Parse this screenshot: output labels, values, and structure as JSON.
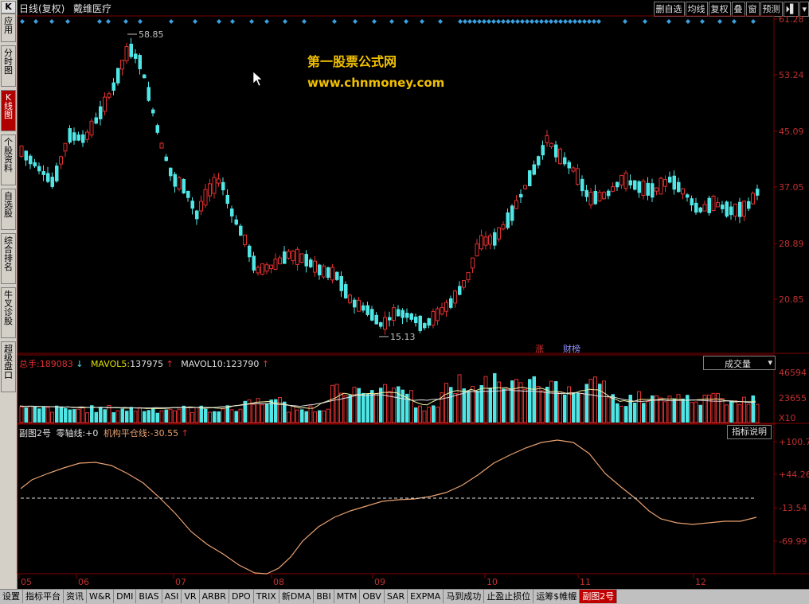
{
  "header": {
    "title": "日线(复权)",
    "stock_name": "戴维医疗"
  },
  "toolbar": [
    "删自选",
    "均线",
    "复权",
    "叠",
    "窗",
    "预测",
    "⏵▌"
  ],
  "left_nav": [
    {
      "label": "应用",
      "icon": "K"
    },
    {
      "label": "分时图"
    },
    {
      "label": "K线图",
      "active": true
    },
    {
      "label": "个股资料"
    },
    {
      "label": "自选股"
    },
    {
      "label": "综合排名"
    },
    {
      "label": "牛叉诊股"
    },
    {
      "label": "超级盘口"
    }
  ],
  "watermark": {
    "line1": "第一股票公式网",
    "line2": "www.chnmoney.com"
  },
  "price_axis": [
    "61.28",
    "53.24",
    "45.09",
    "37.05",
    "28.89",
    "20.85"
  ],
  "price_marks": {
    "high": "58.85",
    "low": "15.13"
  },
  "event_tags": {
    "zhang": "涨",
    "caibang": "财榜"
  },
  "volume_panel": {
    "total_label": "总手:",
    "total_value": "189083",
    "mavol5_label": "MAVOL5:",
    "mavol5_value": "137975",
    "mavol10_label": "MAVOL10:",
    "mavol10_value": "123790",
    "selector": "成交量",
    "axis": [
      "46594",
      "23655",
      "X10"
    ]
  },
  "indicator_panel": {
    "name": "副图2号",
    "zero_label": "零轴线:",
    "zero_value": "+0",
    "inst_label": "机构平仓线:",
    "inst_value": "-30.55",
    "help_button": "指标说明",
    "axis": [
      "+100.7",
      "+44.26",
      "-13.54",
      "-69.99"
    ]
  },
  "time_axis": [
    "05",
    "06",
    "07",
    "08",
    "09",
    "10",
    "11",
    "12"
  ],
  "bottom_tabs": [
    "设置",
    "指标平台",
    "资讯",
    "W&R",
    "DMI",
    "BIAS",
    "ASI",
    "VR",
    "ARBR",
    "DPO",
    "TRIX",
    "新DMA",
    "BBI",
    "MTM",
    "OBV",
    "SAR",
    "EXPMA",
    "马到成功",
    "止盈止损位",
    "运筹$帷幄",
    "副图2号"
  ],
  "active_bottom_tab": "副图2号",
  "colors": {
    "up": "#e03030",
    "down": "#50e6e6",
    "grid": "#800000",
    "axis_text": "#c03030",
    "curve": "#e8a070",
    "watermark": "#f0c000"
  }
}
